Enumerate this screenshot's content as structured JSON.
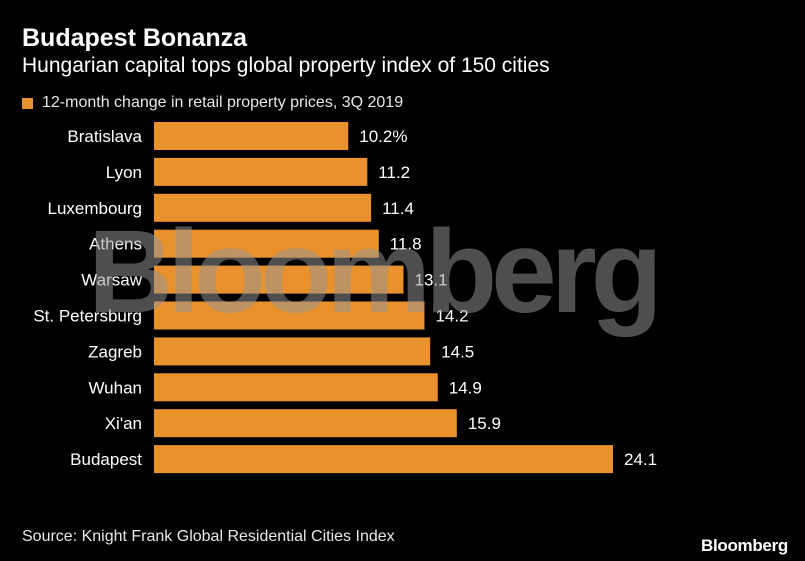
{
  "header": {
    "title": "Budapest Bonanza",
    "subtitle": "Hungarian capital tops global property index of 150 cities"
  },
  "legend": {
    "label": "12-month change in retail property prices, 3Q 2019",
    "color": "#E8912D"
  },
  "chart_data": {
    "type": "bar",
    "orientation": "horizontal",
    "title": "Budapest Bonanza",
    "subtitle": "Hungarian capital tops global property index of 150 cities",
    "series_name": "12-month change in retail property prices, 3Q 2019",
    "categories": [
      "Bratislava",
      "Lyon",
      "Luxembourg",
      "Athens",
      "Warsaw",
      "St. Petersburg",
      "Zagreb",
      "Wuhan",
      "Xi'an",
      "Budapest"
    ],
    "values": [
      10.2,
      11.2,
      11.4,
      11.8,
      13.1,
      14.2,
      14.5,
      14.9,
      15.9,
      24.1
    ],
    "value_labels": [
      "10.2%",
      "11.2",
      "11.4",
      "11.8",
      "13.1",
      "14.2",
      "14.5",
      "14.9",
      "15.9",
      "24.1"
    ],
    "xlim": [
      0,
      24.1
    ],
    "grid": false,
    "bar_color": "#E8912D"
  },
  "footer": {
    "source": "Source: Knight Frank Global Residential Cities Index",
    "brand": "Bloomberg"
  },
  "watermark": "Bloomberg"
}
